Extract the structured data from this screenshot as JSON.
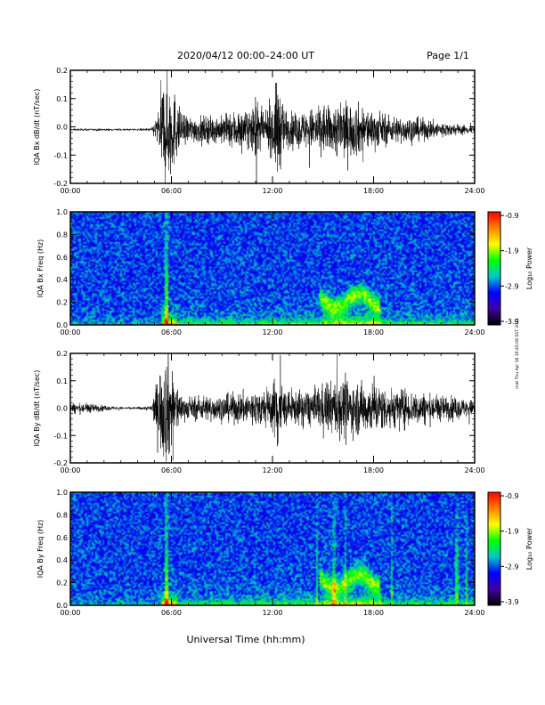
{
  "header": {
    "title": "2020/04/12  00:00–24:00 UT",
    "page": "Page 1/1"
  },
  "footer": {
    "xlabel": "Universal Time (hh:mm)"
  },
  "side_note": "mat Thu Apr 16 19:45:08 EST 2021",
  "colorbar": {
    "label": "Log₁₀ Power",
    "ticks": [
      "-0.9",
      "-1.9",
      "-2.9",
      "-3.9"
    ],
    "colors": [
      "#ff0000",
      "#ff8000",
      "#ffff00",
      "#00ff00",
      "#00c8c8",
      "#0000ff",
      "#4000a0",
      "#000000"
    ]
  },
  "chart_data": [
    {
      "type": "line",
      "id": "bx_dbdt",
      "ylabel": "IQA Bx dB/dt (nT/sec)",
      "xlim": [
        0,
        24
      ],
      "ylim": [
        -0.2,
        0.2
      ],
      "x_ticks": [
        "00:00",
        "06:00",
        "12:00",
        "18:00",
        "24:00"
      ],
      "y_ticks": [
        "0.2",
        "0.1",
        "0.0",
        "-0.1",
        "-0.2"
      ],
      "envelope": {
        "x_hours": [
          0,
          2,
          4,
          4.8,
          5.2,
          5.5,
          5.8,
          6.2,
          6.6,
          7,
          8,
          9,
          10,
          10.5,
          11,
          11.5,
          12,
          12.3,
          12.6,
          13,
          14,
          15,
          15.5,
          16,
          16.5,
          17,
          18,
          19,
          20,
          21,
          22,
          23,
          24
        ],
        "amplitude": [
          0.004,
          0.004,
          0.004,
          0.006,
          0.06,
          0.2,
          0.21,
          0.14,
          0.06,
          0.05,
          0.05,
          0.05,
          0.08,
          0.06,
          0.12,
          0.05,
          0.1,
          0.2,
          0.1,
          0.06,
          0.07,
          0.1,
          0.08,
          0.12,
          0.1,
          0.1,
          0.07,
          0.05,
          0.05,
          0.04,
          0.03,
          0.02,
          0.015
        ],
        "offset": -0.01
      }
    },
    {
      "type": "heatmap",
      "id": "bx_spec",
      "ylabel": "IQA Bx Freq (Hz)",
      "xlim": [
        0,
        24
      ],
      "ylim": [
        0,
        1.0
      ],
      "x_ticks": [
        "00:00",
        "06:00",
        "12:00",
        "18:00",
        "24:00"
      ],
      "y_ticks": [
        "1.0",
        "0.8",
        "0.6",
        "0.4",
        "0.2",
        "0.0"
      ],
      "z_units": "log10 power",
      "z_range": [
        -3.9,
        -0.9
      ]
    },
    {
      "type": "line",
      "id": "by_dbdt",
      "ylabel": "IQA By dB/dt (nT/sec)",
      "xlim": [
        0,
        24
      ],
      "ylim": [
        -0.2,
        0.2
      ],
      "x_ticks": [
        "00:00",
        "06:00",
        "12:00",
        "18:00",
        "24:00"
      ],
      "y_ticks": [
        "0.2",
        "0.1",
        "0.0",
        "-0.1",
        "-0.2"
      ],
      "envelope": {
        "x_hours": [
          0,
          1,
          2,
          3,
          4,
          4.8,
          5.2,
          5.5,
          5.8,
          6.2,
          6.6,
          7,
          8,
          9,
          10,
          11,
          12,
          12.3,
          12.6,
          13,
          14,
          15,
          15.5,
          16,
          16.5,
          17,
          18,
          19,
          20,
          21,
          22,
          23,
          24
        ],
        "amplitude": [
          0.02,
          0.02,
          0.01,
          0.005,
          0.005,
          0.01,
          0.12,
          0.2,
          0.22,
          0.12,
          0.05,
          0.04,
          0.05,
          0.05,
          0.06,
          0.07,
          0.08,
          0.2,
          0.08,
          0.06,
          0.07,
          0.09,
          0.1,
          0.12,
          0.1,
          0.1,
          0.1,
          0.08,
          0.07,
          0.06,
          0.05,
          0.04,
          0.03
        ],
        "offset": 0.0
      }
    },
    {
      "type": "heatmap",
      "id": "by_spec",
      "ylabel": "IQA By Freq (Hz)",
      "xlim": [
        0,
        24
      ],
      "ylim": [
        0,
        1.0
      ],
      "x_ticks": [
        "00:00",
        "06:00",
        "12:00",
        "18:00",
        "24:00"
      ],
      "y_ticks": [
        "1.0",
        "0.8",
        "0.6",
        "0.4",
        "0.2",
        "0.0"
      ],
      "z_units": "log10 power",
      "z_range": [
        -3.9,
        -0.9
      ]
    }
  ]
}
